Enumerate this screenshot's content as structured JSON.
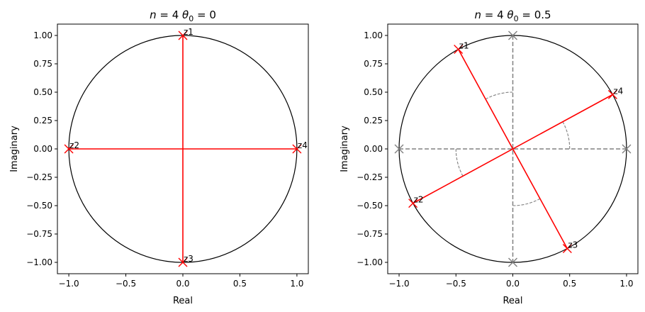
{
  "chart_data": [
    {
      "type": "scatter",
      "title_parts": {
        "n_label": "n",
        "n_value": "4",
        "theta_label": "θ",
        "theta_sub": "0",
        "theta_value": "0"
      },
      "xlabel": "Real",
      "ylabel": "Imaginary",
      "xlim": [
        -1.1,
        1.1
      ],
      "ylim": [
        -1.1,
        1.1
      ],
      "xticks": [
        -1.0,
        -0.5,
        0.0,
        0.5,
        1.0
      ],
      "xtick_labels": [
        "−1.0",
        "−0.5",
        "0.0",
        "0.5",
        "1.0"
      ],
      "yticks": [
        1.0,
        0.75,
        0.5,
        0.25,
        0.0,
        -0.25,
        -0.5,
        -0.75,
        -1.0
      ],
      "ytick_labels": [
        "1.00",
        "0.75",
        "0.50",
        "0.25",
        "0.00",
        "−0.25",
        "−0.50",
        "−0.75",
        "−1.00"
      ],
      "unit_circle": true,
      "roots": [
        {
          "label": "z1",
          "x": 0.0,
          "y": 1.0
        },
        {
          "label": "z2",
          "x": -1.0,
          "y": 0.0
        },
        {
          "label": "z3",
          "x": 0.0,
          "y": -1.0
        },
        {
          "label": "z4",
          "x": 1.0,
          "y": 0.0
        }
      ],
      "segments": [
        [
          "z1",
          "z3"
        ],
        [
          "z2",
          "z4"
        ]
      ],
      "reference_points": [],
      "reference_arcs": [],
      "colors": {
        "roots": "#ff0000",
        "circle": "#000000",
        "reference": "#808080"
      }
    },
    {
      "type": "scatter",
      "title_parts": {
        "n_label": "n",
        "n_value": "4",
        "theta_label": "θ",
        "theta_sub": "0",
        "theta_value": "0.5"
      },
      "xlabel": "Real",
      "ylabel": "Imaginary",
      "xlim": [
        -1.1,
        1.1
      ],
      "ylim": [
        -1.1,
        1.1
      ],
      "xticks": [
        -1.0,
        -0.5,
        0.0,
        0.5,
        1.0
      ],
      "xtick_labels": [
        "−1.0",
        "−0.5",
        "0.0",
        "0.5",
        "1.0"
      ],
      "yticks": [
        1.0,
        0.75,
        0.5,
        0.25,
        0.0,
        -0.25,
        -0.5,
        -0.75,
        -1.0
      ],
      "ytick_labels": [
        "1.00",
        "0.75",
        "0.50",
        "0.25",
        "0.00",
        "−0.25",
        "−0.50",
        "−0.75",
        "−1.00"
      ],
      "unit_circle": true,
      "roots": [
        {
          "label": "z1",
          "x": -0.479,
          "y": 0.878
        },
        {
          "label": "z2",
          "x": -0.878,
          "y": -0.479
        },
        {
          "label": "z3",
          "x": 0.479,
          "y": -0.878
        },
        {
          "label": "z4",
          "x": 0.878,
          "y": 0.479
        }
      ],
      "segments": [
        [
          "z1",
          "z3"
        ],
        [
          "z2",
          "z4"
        ]
      ],
      "reference_points": [
        {
          "x": 0.0,
          "y": 1.0
        },
        {
          "x": -1.0,
          "y": 0.0
        },
        {
          "x": 0.0,
          "y": -1.0
        },
        {
          "x": 1.0,
          "y": 0.0
        }
      ],
      "reference_arcs": [
        {
          "r": 0.5,
          "from_deg": 0,
          "to_deg": 28.6
        },
        {
          "r": 0.5,
          "from_deg": 90,
          "to_deg": 118.6
        },
        {
          "r": 0.5,
          "from_deg": 180,
          "to_deg": 208.6
        },
        {
          "r": 0.5,
          "from_deg": 270,
          "to_deg": 298.6
        }
      ],
      "colors": {
        "roots": "#ff0000",
        "circle": "#000000",
        "reference": "#808080"
      }
    }
  ]
}
